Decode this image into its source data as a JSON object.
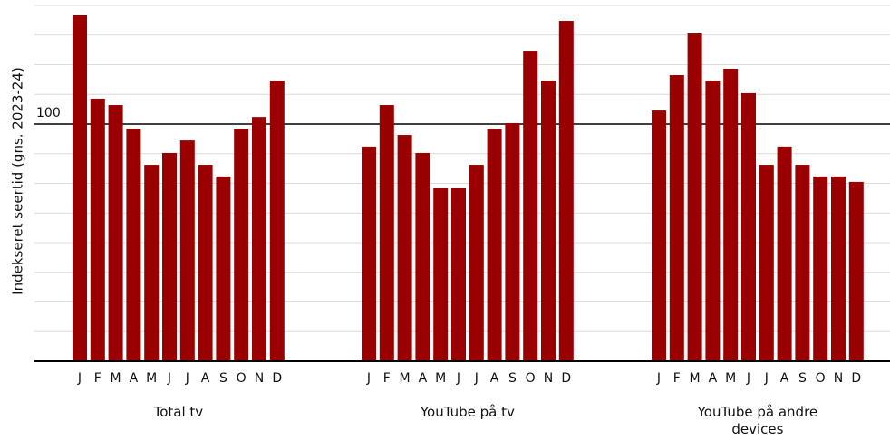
{
  "chart_data": {
    "type": "bar",
    "ylabel": "Indekseret seertid (gns. 2023-24)",
    "ylim": [
      0,
      150
    ],
    "yticks": [
      100
    ],
    "grid": [
      0,
      12.5,
      25,
      37.5,
      50,
      62.5,
      75,
      87.5,
      100,
      112.5,
      125,
      137.5,
      150
    ],
    "color": "#9b0000",
    "groups": [
      {
        "name": "Total tv",
        "categories": [
          "J",
          "F",
          "M",
          "A",
          "M",
          "J",
          "J",
          "A",
          "S",
          "O",
          "N",
          "D"
        ],
        "values": [
          145.8,
          110.7,
          108,
          98,
          82.8,
          87.8,
          93.1,
          82.8,
          77.9,
          98,
          103,
          118.3
        ]
      },
      {
        "name": "YouTube på tv",
        "categories": [
          "J",
          "F",
          "M",
          "A",
          "M",
          "J",
          "J",
          "A",
          "S",
          "O",
          "N",
          "D"
        ],
        "values": [
          90.5,
          108,
          95.4,
          87.8,
          72.9,
          72.9,
          82.8,
          98,
          100.4,
          130.9,
          118.3,
          143.5
        ]
      },
      {
        "name": "YouTube på andre devices",
        "categories": [
          "J",
          "F",
          "M",
          "A",
          "M",
          "J",
          "J",
          "A",
          "S",
          "O",
          "N",
          "D"
        ],
        "values": [
          105.7,
          120.6,
          138.2,
          118.3,
          123.3,
          113,
          82.8,
          90.5,
          82.8,
          77.9,
          77.9,
          75.6
        ]
      }
    ]
  }
}
